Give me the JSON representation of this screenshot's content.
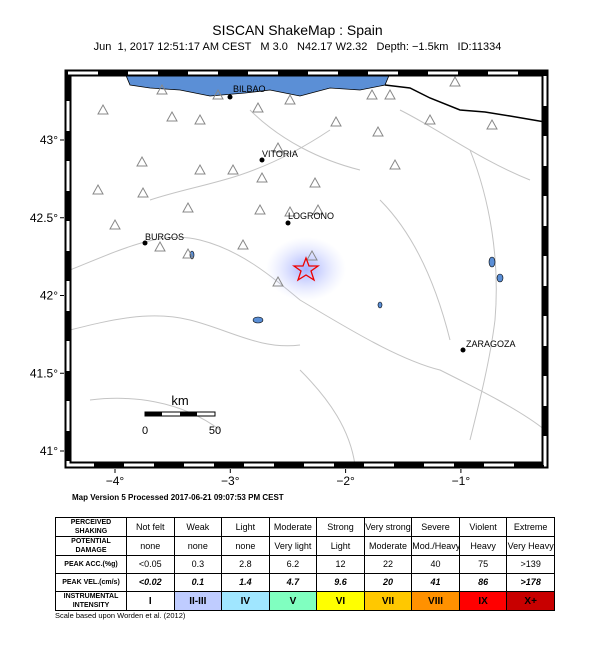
{
  "header": {
    "title": "SISCAN ShakeMap : Spain",
    "subtitle": "Jun  1, 2017 12:51:17 AM CEST   M 3.0   N42.17 W2.32   Depth: −1.5km   ID:11334"
  },
  "map": {
    "lat_ticks": [
      {
        "value": 43,
        "label": "43°"
      },
      {
        "value": 42.5,
        "label": "42.5°"
      },
      {
        "value": 42,
        "label": "42°"
      },
      {
        "value": 41.5,
        "label": "41.5°"
      },
      {
        "value": 41,
        "label": "41°"
      }
    ],
    "lon_ticks": [
      {
        "value": -4,
        "label": "−4°"
      },
      {
        "value": -3,
        "label": "−3°"
      },
      {
        "value": -2,
        "label": "−2°"
      },
      {
        "value": -1,
        "label": "−1°"
      }
    ],
    "cities": [
      "BILBAO",
      "VITORIA",
      "LOGRONO",
      "BURGOS",
      "ZARAGOZA"
    ],
    "scale": {
      "unit": "km",
      "labels": [
        "0",
        "50"
      ]
    },
    "version_note": "Map Version 5 Processed 2017-06-21 09:07:53 PM CEST"
  },
  "table": {
    "rows": [
      [
        "PERCEIVED SHAKING",
        "Not felt",
        "Weak",
        "Light",
        "Moderate",
        "Strong",
        "Very strong",
        "Severe",
        "Violent",
        "Extreme"
      ],
      [
        "POTENTIAL DAMAGE",
        "none",
        "none",
        "none",
        "Very light",
        "Light",
        "Moderate",
        "Mod./Heavy",
        "Heavy",
        "Very Heavy"
      ],
      [
        "PEAK ACC.(%g)",
        "<0.05",
        "0.3",
        "2.8",
        "6.2",
        "12",
        "22",
        "40",
        "75",
        ">139"
      ],
      [
        "PEAK VEL.(cm/s)",
        "<0.02",
        "0.1",
        "1.4",
        "4.7",
        "9.6",
        "20",
        "41",
        "86",
        ">178"
      ],
      [
        "INSTRUMENTAL INTENSITY",
        "I",
        "II-III",
        "IV",
        "V",
        "VI",
        "VII",
        "VIII",
        "IX",
        "X+"
      ]
    ]
  },
  "footnote": "Scale based upon Worden et al. (2012)"
}
